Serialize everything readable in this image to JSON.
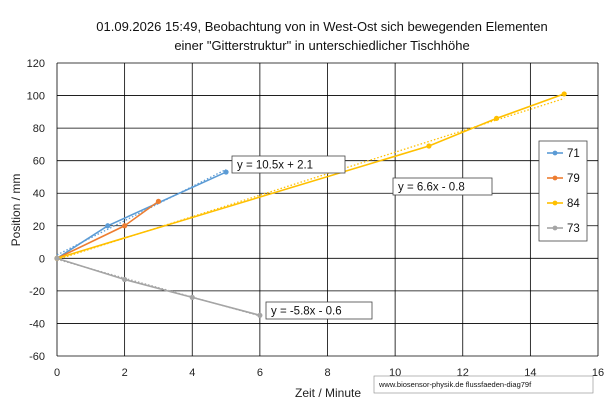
{
  "chart_data": {
    "type": "scatter",
    "title_lines": [
      "01.09.2026  15:49, Beobachtung von in West-Ost sich bewegenden Elementen",
      "einer \"Gitterstruktur\"  in unterschiedlicher Tischhöhe"
    ],
    "xlabel": "Zeit / Minute",
    "ylabel": "Position / mm",
    "xlim": [
      0,
      16
    ],
    "ylim": [
      -60,
      120
    ],
    "xticks": [
      "0",
      "2",
      "4",
      "6",
      "8",
      "10",
      "12",
      "14",
      "16"
    ],
    "yticks": [
      "-60",
      "-40",
      "-20",
      "0",
      "20",
      "40",
      "60",
      "80",
      "100",
      "120"
    ],
    "grid": true,
    "legend_position": "right",
    "series": [
      {
        "name": "71",
        "color": "#5b9bd5",
        "x": [
          0,
          1.5,
          5
        ],
        "y": [
          0,
          20,
          53
        ],
        "trendline": {
          "slope": 10.5,
          "intercept": 2.1,
          "label": "y = 10.5x + 2.1"
        }
      },
      {
        "name": "79",
        "color": "#ed7d31",
        "x": [
          0,
          2,
          3
        ],
        "y": [
          0,
          20,
          35
        ],
        "trendline": null
      },
      {
        "name": "84",
        "color": "#ffc000",
        "x": [
          0,
          11,
          13,
          15
        ],
        "y": [
          0,
          69,
          86,
          101
        ],
        "trendline": {
          "slope": 6.6,
          "intercept": -0.8,
          "label": "y = 6.6x - 0.8"
        }
      },
      {
        "name": "73",
        "color": "#a5a5a5",
        "x": [
          0,
          2,
          4,
          6
        ],
        "y": [
          0,
          -13,
          -24,
          -35
        ],
        "trendline": {
          "slope": -5.8,
          "intercept": -0.6,
          "label": "y = -5.8x - 0.6"
        }
      }
    ],
    "footer": "www.biosensor-physik.de  flussfaeden-diag79f"
  }
}
